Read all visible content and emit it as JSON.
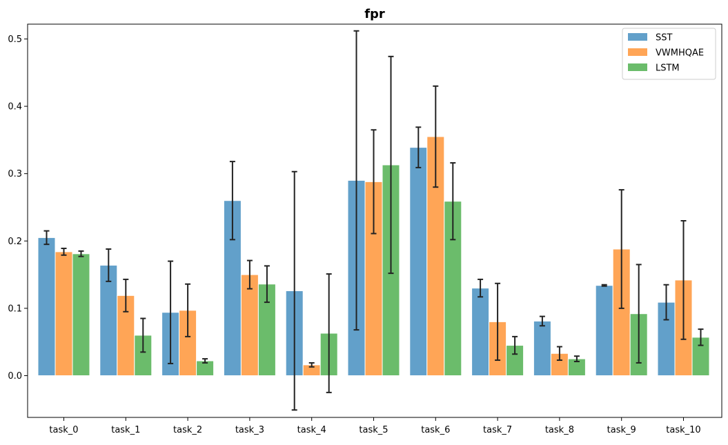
{
  "chart_data": {
    "type": "bar",
    "title": "fpr",
    "xlabel": "",
    "ylabel": "",
    "categories": [
      "task_0",
      "task_1",
      "task_2",
      "task_3",
      "task_4",
      "task_5",
      "task_6",
      "task_7",
      "task_8",
      "task_9",
      "task_10"
    ],
    "ylim": [
      -0.062,
      0.522
    ],
    "yticks": [
      0.0,
      0.1,
      0.2,
      0.3,
      0.4,
      0.5
    ],
    "ytick_labels": [
      "0.0",
      "0.1",
      "0.2",
      "0.3",
      "0.4",
      "0.5"
    ],
    "grid": false,
    "legend_position": "top-right",
    "series": [
      {
        "name": "SST",
        "color": "#1f77b4",
        "values": [
          0.205,
          0.164,
          0.094,
          0.26,
          0.126,
          0.29,
          0.339,
          0.13,
          0.081,
          0.134,
          0.109
        ],
        "errors": [
          0.01,
          0.024,
          0.076,
          0.058,
          0.177,
          0.222,
          0.03,
          0.013,
          0.007,
          0.001,
          0.026
        ]
      },
      {
        "name": "VWMHQAE",
        "color": "#ff7f0e",
        "values": [
          0.184,
          0.119,
          0.097,
          0.15,
          0.016,
          0.288,
          0.355,
          0.08,
          0.033,
          0.188,
          0.142
        ],
        "errors": [
          0.005,
          0.024,
          0.039,
          0.021,
          0.003,
          0.077,
          0.075,
          0.057,
          0.01,
          0.088,
          0.088
        ]
      },
      {
        "name": "LSTM",
        "color": "#2ca02c",
        "values": [
          0.181,
          0.06,
          0.022,
          0.136,
          0.063,
          0.313,
          0.259,
          0.045,
          0.025,
          0.092,
          0.057
        ],
        "errors": [
          0.004,
          0.025,
          0.003,
          0.027,
          0.088,
          0.161,
          0.057,
          0.013,
          0.004,
          0.073,
          0.012
        ]
      }
    ]
  }
}
